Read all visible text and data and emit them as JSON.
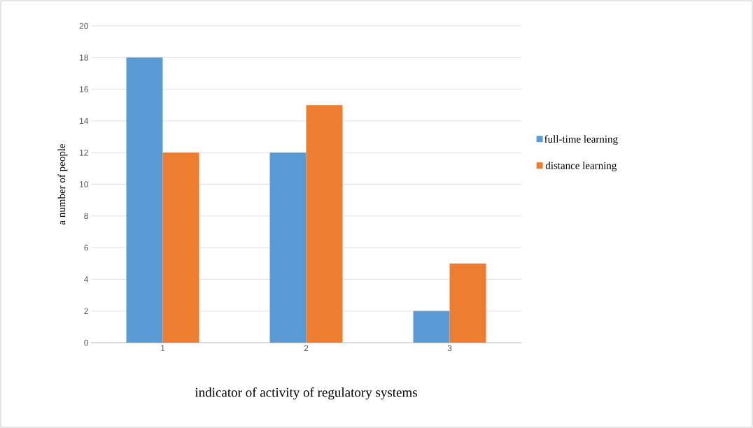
{
  "chart_data": {
    "type": "bar",
    "xlabel": "indicator of activity of regulatory systems",
    "ylabel": "a number of people",
    "categories": [
      "1",
      "2",
      "3"
    ],
    "series": [
      {
        "name": "full-time learning",
        "color": "#5b9bd5",
        "values": [
          18,
          12,
          2
        ]
      },
      {
        "name": "distance learning",
        "color": "#ed7d31",
        "values": [
          12,
          15,
          5
        ]
      }
    ],
    "ylim": [
      0,
      20
    ],
    "yticks": [
      0,
      2,
      4,
      6,
      8,
      10,
      12,
      14,
      16,
      18,
      20
    ],
    "grid": "y",
    "legend": "right"
  }
}
